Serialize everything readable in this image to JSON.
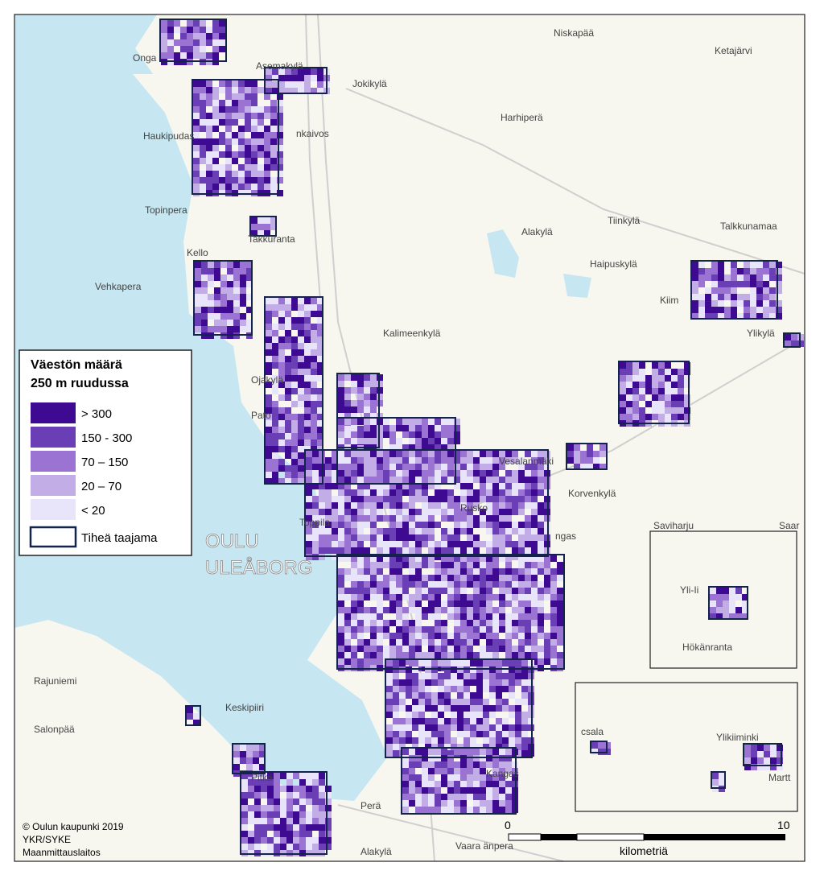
{
  "legend": {
    "title": [
      "Väestön määrä",
      "250 m ruudussa"
    ],
    "items": [
      {
        "label": "> 300",
        "color": "#3d0a91"
      },
      {
        "label": "150  -  300",
        "color": "#6a3fb5"
      },
      {
        "label": "70  –  150",
        "color": "#9b74d3"
      },
      {
        "label": "20  –  70",
        "color": "#c2ade6"
      },
      {
        "label": "< 20",
        "color": "#e8e4fa"
      }
    ],
    "outline": "Tiheä taajama"
  },
  "places": [
    "Niskapää",
    "Ketajärvi",
    "Onga",
    "Asemakylä",
    "Jokikylä",
    "Harhiperä",
    "Haukipudas",
    "nkaivos",
    "Topinpera",
    "Takkuranta",
    "Kello",
    "Tiinkylä",
    "Alakylä",
    "Talkkunamaa",
    "Haipuskylä",
    "Vehkapera",
    "Kiim",
    "Ylikylä",
    "Kalimeenkylä",
    "Ojakylä",
    "Pato",
    "Vesalanmäki",
    "Korvenkylä",
    "Rusko",
    "Toppila",
    "ngas",
    "Saviharju",
    "Saar",
    "Yli-Ii",
    "Hökänranta",
    "Rajuniemi",
    "Keskipiiri",
    "Salonpää",
    "Ylikiiminki",
    "csala",
    "Martt",
    "Kangas",
    "Pitkä",
    "Perä",
    "Vaara änpera",
    "Alakylä"
  ],
  "city": [
    "OULU",
    "ULEÅBORG"
  ],
  "scale": {
    "start": "0",
    "end": "10",
    "unit": "kilometriä"
  },
  "credits": [
    "© Oulun kaupunki 2019",
    "YKR/SYKE",
    "Maanmittauslaitos"
  ]
}
